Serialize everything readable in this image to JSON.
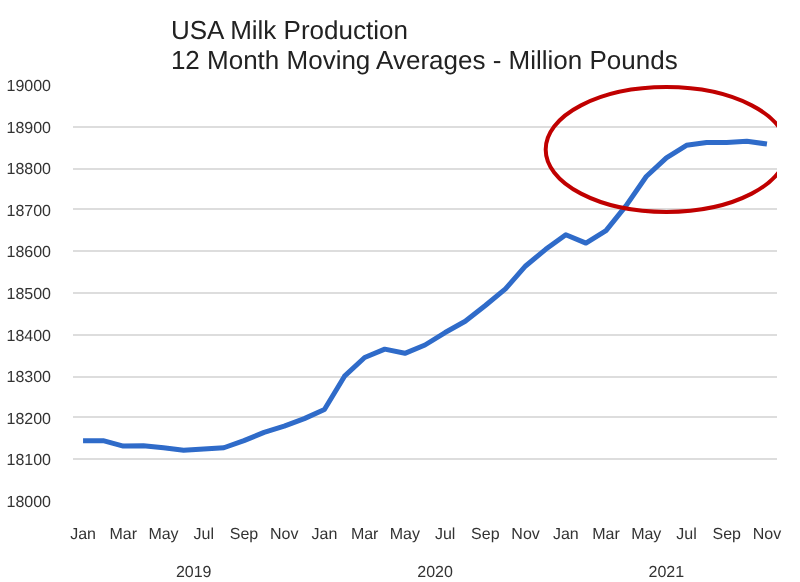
{
  "chart_data": {
    "type": "line",
    "title": "USA Milk Production\n12 Month Moving Averages - Million Pounds",
    "categories": [
      "Jan",
      null,
      "Mar",
      null,
      "May",
      null,
      "Jul",
      null,
      "Sep",
      null,
      "Nov",
      null,
      "Jan",
      null,
      "Mar",
      null,
      "May",
      null,
      "Jul",
      null,
      "Sep",
      null,
      "Nov",
      null,
      "Jan",
      null,
      "Mar",
      null,
      "May",
      null,
      "Jul",
      null,
      "Sep",
      null,
      "Nov"
    ],
    "series": [
      {
        "color": "#2f6bc9",
        "values": [
          18145,
          18145,
          18132,
          18133,
          18128,
          18122,
          18125,
          18128,
          18145,
          18165,
          18180,
          18198,
          18220,
          18300,
          18345,
          18365,
          18355,
          18375,
          18405,
          18432,
          18470,
          18510,
          18565,
          18605,
          18640,
          18620,
          18650,
          18710,
          18780,
          18825,
          18855,
          18862,
          18862,
          18865,
          18858
        ]
      }
    ],
    "annotations": [
      "2019",
      "2020",
      "2021"
    ],
    "ylim": [
      18000,
      19000
    ],
    "yticks": [
      18000,
      18100,
      18200,
      18300,
      18400,
      18500,
      18600,
      18700,
      18800,
      18900,
      19000
    ],
    "grid": "y",
    "marker": "none",
    "line_style": "solid"
  }
}
